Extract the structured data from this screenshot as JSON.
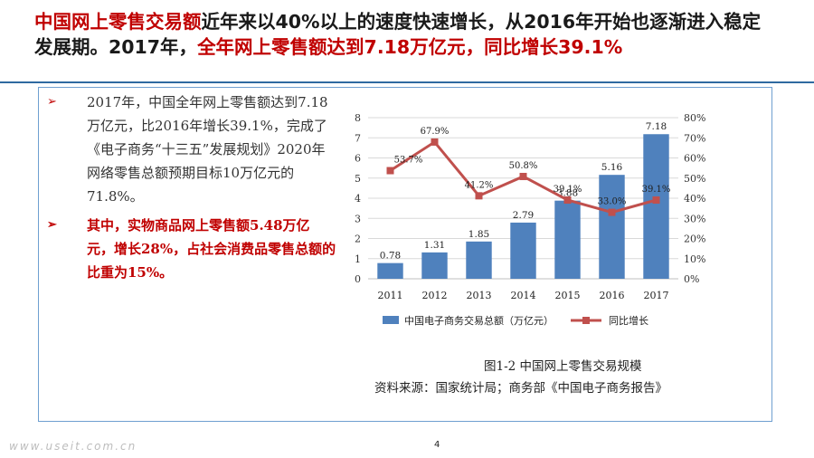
{
  "title": {
    "part1": "中国网上零售交易额",
    "part2": "近年来以40%以上的速度快速增长，从2016年开始也逐渐进入稳定发展期。",
    "part3": "2017年，",
    "part4": "全年网上零售额达到7.18万亿元，同比增长39.1%"
  },
  "bullets": [
    {
      "marker": "➢",
      "text": "2017年，中国全年网上零售额达到7.18万亿元，比2016年增长39.1%，完成了《电子商务“十三五”发展规划》2020年网络零售总额预期目标10万亿元的71.8%。"
    },
    {
      "marker": "➢",
      "text": "其中，实物商品网上零售额5.48万亿元，增长28%，占社会消费品零售总额的比重为15%。"
    }
  ],
  "chart_data": {
    "type": "bar",
    "categories": [
      "2011",
      "2012",
      "2013",
      "2014",
      "2015",
      "2016",
      "2017"
    ],
    "series": [
      {
        "name": "中国电子商务交易总额（万亿元）",
        "type": "bar",
        "axis": "left",
        "values": [
          0.78,
          1.31,
          1.85,
          2.79,
          3.88,
          5.16,
          7.18
        ],
        "labels": [
          "0.78",
          "1.31",
          "1.85",
          "2.79",
          "3.88",
          "5.16",
          "7.18"
        ],
        "color": "#4f81bd"
      },
      {
        "name": "同比增长",
        "type": "line",
        "axis": "right",
        "values": [
          53.7,
          67.9,
          41.2,
          50.8,
          39.1,
          33.0,
          39.1
        ],
        "labels": [
          "53.7%",
          "67.9%",
          "41.2%",
          "50.8%",
          "39.1%",
          "33.0%",
          "39.1%"
        ],
        "color": "#c0504d"
      }
    ],
    "y_left": {
      "min": 0,
      "max": 8,
      "ticks": [
        "0",
        "1",
        "2",
        "3",
        "4",
        "5",
        "6",
        "7",
        "8"
      ]
    },
    "y_right": {
      "min": 0,
      "max": 80,
      "ticks": [
        "0%",
        "10%",
        "20%",
        "30%",
        "40%",
        "50%",
        "60%",
        "70%",
        "80%"
      ]
    },
    "grid": true,
    "legend": "bottom"
  },
  "caption": "图1-2  中国网上零售交易规模",
  "source": "资料来源：国家统计局；商务部《中国电子商务报告》",
  "watermark": "www.useit.com.cn",
  "page_number": "4"
}
